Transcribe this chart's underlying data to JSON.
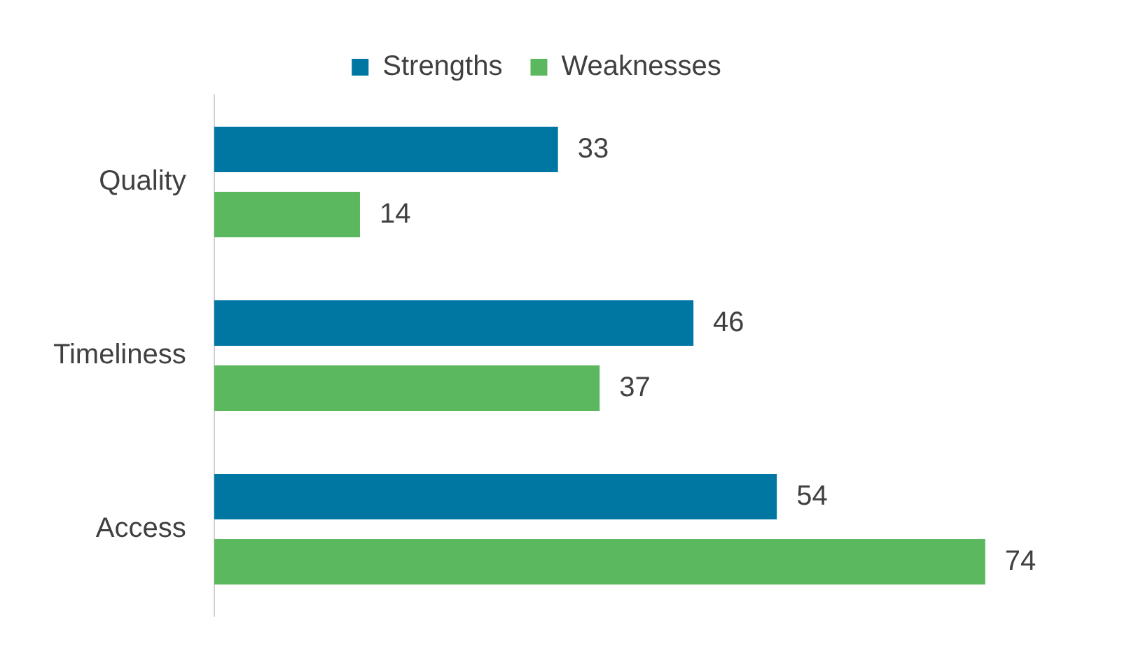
{
  "chart_data": {
    "type": "bar",
    "orientation": "horizontal",
    "categories": [
      "Quality",
      "Timeliness",
      "Access"
    ],
    "series": [
      {
        "name": "Strengths",
        "color": "#0076a3",
        "values": [
          33,
          46,
          54
        ]
      },
      {
        "name": "Weaknesses",
        "color": "#5cb85f",
        "values": [
          14,
          37,
          74
        ]
      }
    ],
    "data_labels": true,
    "legend": "top",
    "grid": false,
    "tick_labels": "y"
  }
}
